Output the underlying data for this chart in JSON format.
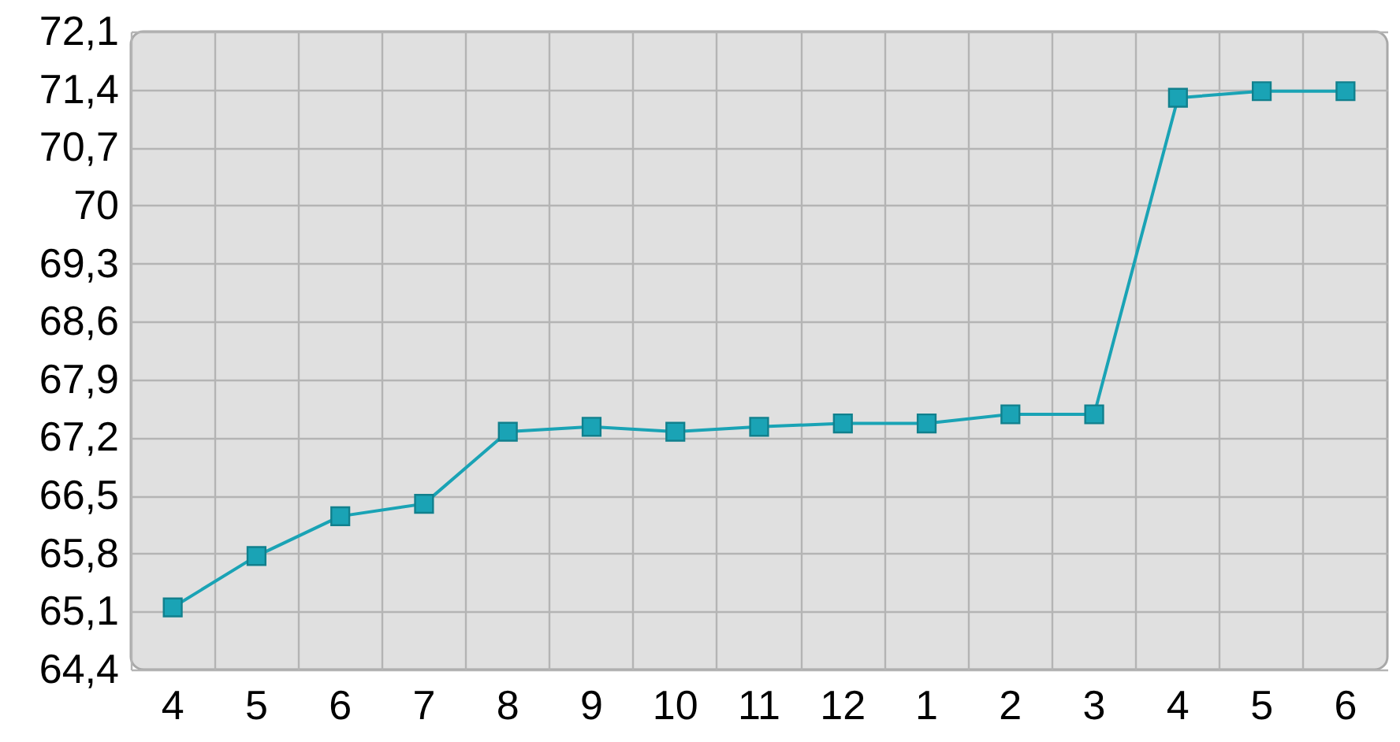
{
  "chart_data": {
    "type": "line",
    "categories": [
      "4",
      "5",
      "6",
      "7",
      "8",
      "9",
      "10",
      "11",
      "12",
      "1",
      "2",
      "3",
      "4",
      "5",
      "6"
    ],
    "series": [
      {
        "color": "#1aa3b5",
        "values": [
          65.15,
          65.77,
          66.25,
          66.4,
          67.27,
          67.33,
          67.27,
          67.33,
          67.37,
          67.37,
          67.48,
          67.48,
          71.3,
          71.38,
          71.38
        ]
      }
    ],
    "ylim": [
      64.4,
      72.1
    ],
    "yticks": [
      {
        "value": 64.4,
        "label": "64,4"
      },
      {
        "value": 65.1,
        "label": "65,1"
      },
      {
        "value": 65.8,
        "label": "65,8"
      },
      {
        "value": 66.5,
        "label": "66,5"
      },
      {
        "value": 67.2,
        "label": "67,2"
      },
      {
        "value": 67.9,
        "label": "67,9"
      },
      {
        "value": 68.6,
        "label": "68,6"
      },
      {
        "value": 69.3,
        "label": "69,3"
      },
      {
        "value": 70,
        "label": "70"
      },
      {
        "value": 70.7,
        "label": "70,7"
      },
      {
        "value": 71.4,
        "label": "71,4"
      },
      {
        "value": 72.1,
        "label": "72,1"
      }
    ],
    "grid": true,
    "marker": "square"
  }
}
